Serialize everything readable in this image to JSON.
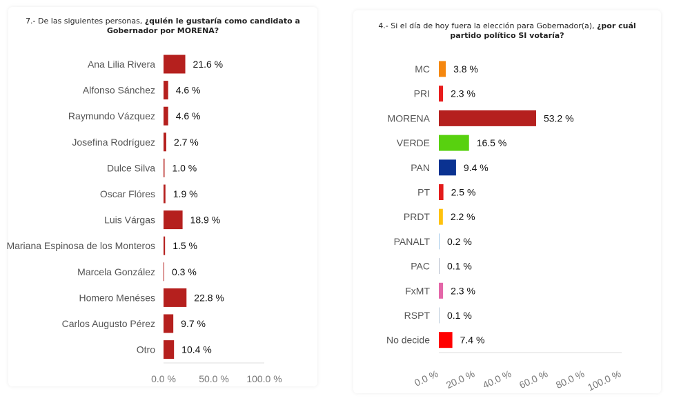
{
  "charts_meta": [
    {
      "title_plain": "7.- De las siguientes personas, ",
      "title_bold": "¿quién le gustaría como candidato a Gobernador por MORENA?"
    },
    {
      "title_plain": "4.- Si el día de hoy fuera la elección para Gobernador(a), ",
      "title_bold": "¿por cuál partido político SI votaría?"
    }
  ],
  "chart_data": [
    {
      "type": "bar",
      "orientation": "horizontal",
      "title": "7.- De las siguientes personas, ¿quién le gustaría como candidato a Gobernador por MORENA?",
      "categories": [
        "Ana Lilia Rivera",
        "Alfonso Sánchez",
        "Raymundo Vázquez",
        "Josefina Rodríguez",
        "Dulce Silva",
        "Oscar Flóres",
        "Luis Várgas",
        "Mariana Espinosa de los Monteros",
        "Marcela González",
        "Homero Menéses",
        "Carlos Augusto Pérez",
        "Otro"
      ],
      "values": [
        21.6,
        4.6,
        4.6,
        2.7,
        1.0,
        1.9,
        18.9,
        1.5,
        0.3,
        22.8,
        9.7,
        10.4
      ],
      "labels": [
        "21.6 %",
        "4.6 %",
        "4.6 %",
        "2.7 %",
        "1.0 %",
        "1.9 %",
        "18.9 %",
        "1.5 %",
        "0.3 %",
        "22.8 %",
        "9.7 %",
        "10.4 %"
      ],
      "colors": [
        "#b5201e"
      ],
      "xlim": [
        0,
        100
      ],
      "ticks": [
        "0.0 %",
        "50.0 %",
        "100.0 %"
      ],
      "tick_values": [
        0,
        50,
        100
      ],
      "grid": false
    },
    {
      "type": "bar",
      "orientation": "horizontal",
      "title": "4.- Si el día de hoy fuera la elección para Gobernador(a), ¿por cuál partido político SI votaría?",
      "categories": [
        "MC",
        "PRI",
        "MORENA",
        "VERDE",
        "PAN",
        "PT",
        "PRDT",
        "PANALT",
        "PAC",
        "FxMT",
        "RSPT",
        "No decide"
      ],
      "values": [
        3.8,
        2.3,
        53.2,
        16.5,
        9.4,
        2.5,
        2.2,
        0.2,
        0.1,
        2.3,
        0.1,
        7.4
      ],
      "labels": [
        "3.8 %",
        "2.3 %",
        "53.2 %",
        "16.5 %",
        "9.4 %",
        "2.5 %",
        "2.2 %",
        "0.2 %",
        "0.1 %",
        "2.3 %",
        "0.1 %",
        "7.4 %"
      ],
      "colors": [
        "#f5870f",
        "#e81c1c",
        "#b5201e",
        "#58d10f",
        "#0a3291",
        "#e31b1b",
        "#ffc20e",
        "#9ec6e8",
        "#b0b8c8",
        "#e466a8",
        "#b8c8d8",
        "#ff0000"
      ],
      "xlim": [
        0,
        100
      ],
      "ticks": [
        "0.0 %",
        "20.0 %",
        "40.0 %",
        "60.0 %",
        "80.0 %",
        "100.0 %"
      ],
      "tick_values": [
        0,
        20,
        40,
        60,
        80,
        100
      ],
      "grid": false
    }
  ]
}
